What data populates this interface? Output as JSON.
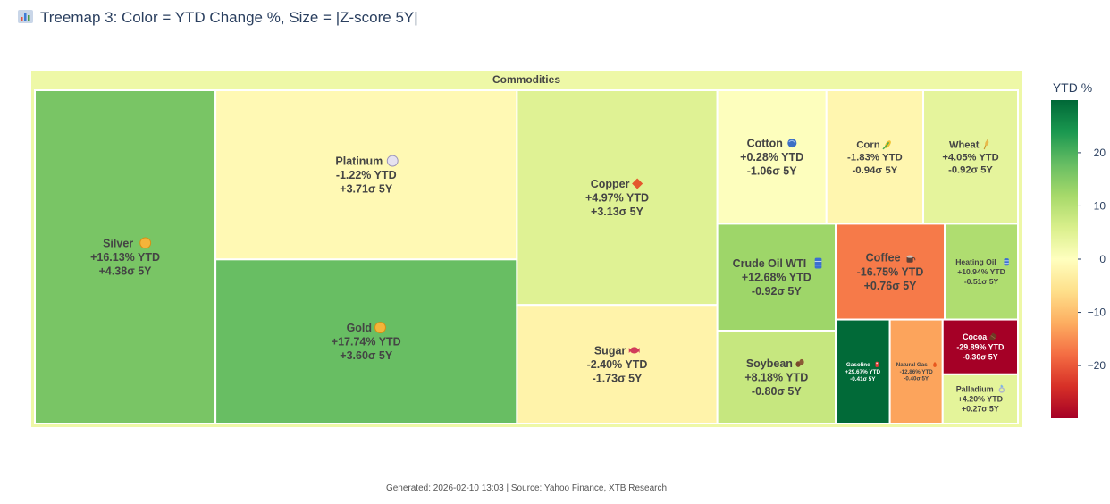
{
  "title": "Treemap 3: Color = YTD Change %, Size = |Z-score 5Y|",
  "footer": "Generated: 2026-02-10 13:03 | Source: Yahoo Finance, XTB Research",
  "chart_data": {
    "type": "treemap",
    "title": "Treemap 3: Color = YTD Change %, Size = |Z-score 5Y|",
    "root": "Commodities",
    "color_metric": "YTD Change %",
    "size_metric": "|Z-score 5Y|",
    "items": [
      {
        "name": "Silver",
        "icon": "coin-icon",
        "ytd": 16.13,
        "ytd_label": "+16.13% YTD",
        "z": 4.38,
        "z_label": "+4.38σ 5Y"
      },
      {
        "name": "Platinum",
        "icon": "disc-icon",
        "ytd": -1.22,
        "ytd_label": "-1.22% YTD",
        "z": 3.71,
        "z_label": "+3.71σ 5Y"
      },
      {
        "name": "Gold",
        "icon": "coin-icon",
        "ytd": 17.74,
        "ytd_label": "+17.74% YTD",
        "z": 3.6,
        "z_label": "+3.60σ 5Y"
      },
      {
        "name": "Copper",
        "icon": "diamond-icon",
        "ytd": 4.97,
        "ytd_label": "+4.97% YTD",
        "z": 3.13,
        "z_label": "+3.13σ 5Y"
      },
      {
        "name": "Sugar",
        "icon": "candy-icon",
        "ytd": -2.4,
        "ytd_label": "-2.40% YTD",
        "z": -1.73,
        "z_label": "-1.73σ 5Y"
      },
      {
        "name": "Cotton",
        "icon": "yarn-icon",
        "ytd": 0.28,
        "ytd_label": "+0.28% YTD",
        "z": -1.06,
        "z_label": "-1.06σ 5Y"
      },
      {
        "name": "Corn",
        "icon": "corn-icon",
        "ytd": -1.83,
        "ytd_label": "-1.83% YTD",
        "z": -0.94,
        "z_label": "-0.94σ 5Y"
      },
      {
        "name": "Wheat",
        "icon": "wheat-icon",
        "ytd": 4.05,
        "ytd_label": "+4.05% YTD",
        "z": -0.92,
        "z_label": "-0.92σ 5Y"
      },
      {
        "name": "Crude Oil WTI",
        "icon": "barrel-icon",
        "ytd": 12.68,
        "ytd_label": "+12.68% YTD",
        "z": -0.92,
        "z_label": "-0.92σ 5Y"
      },
      {
        "name": "Soybean",
        "icon": "beans-icon",
        "ytd": 8.18,
        "ytd_label": "+8.18% YTD",
        "z": -0.8,
        "z_label": "-0.80σ 5Y"
      },
      {
        "name": "Coffee",
        "icon": "coffee-icon",
        "ytd": -16.75,
        "ytd_label": "-16.75% YTD",
        "z": 0.76,
        "z_label": "+0.76σ 5Y"
      },
      {
        "name": "Heating Oil",
        "icon": "barrel-icon",
        "ytd": 10.94,
        "ytd_label": "+10.94% YTD",
        "z": -0.51,
        "z_label": "-0.51σ 5Y"
      },
      {
        "name": "Gasoline",
        "icon": "fuel-icon",
        "ytd": 29.67,
        "ytd_label": "+29.67% YTD",
        "z": -0.41,
        "z_label": "-0.41σ 5Y"
      },
      {
        "name": "Natural Gas",
        "icon": "flame-icon",
        "ytd": -12.86,
        "ytd_label": "-12.86% YTD",
        "z": -0.4,
        "z_label": "-0.40σ 5Y"
      },
      {
        "name": "Cocoa",
        "icon": "chocolate-icon",
        "ytd": -29.89,
        "ytd_label": "-29.89% YTD",
        "z": -0.3,
        "z_label": "-0.30σ 5Y"
      },
      {
        "name": "Palladium",
        "icon": "ring-icon",
        "ytd": 4.2,
        "ytd_label": "+4.20% YTD",
        "z": 0.27,
        "z_label": "+0.27σ 5Y"
      }
    ],
    "colorscale": {
      "title": "YTD %",
      "range": [
        -29.89,
        29.89
      ],
      "ticks": [
        20,
        10,
        0,
        -10,
        -20
      ],
      "tick_labels": [
        "20",
        "10",
        "0",
        "−10",
        "−20"
      ],
      "stops": [
        "#a50026",
        "#d73027",
        "#f46d43",
        "#fdae61",
        "#fee08b",
        "#ffffbf",
        "#d9ef8b",
        "#a6d96a",
        "#66bd63",
        "#1a9850",
        "#006837"
      ]
    }
  }
}
